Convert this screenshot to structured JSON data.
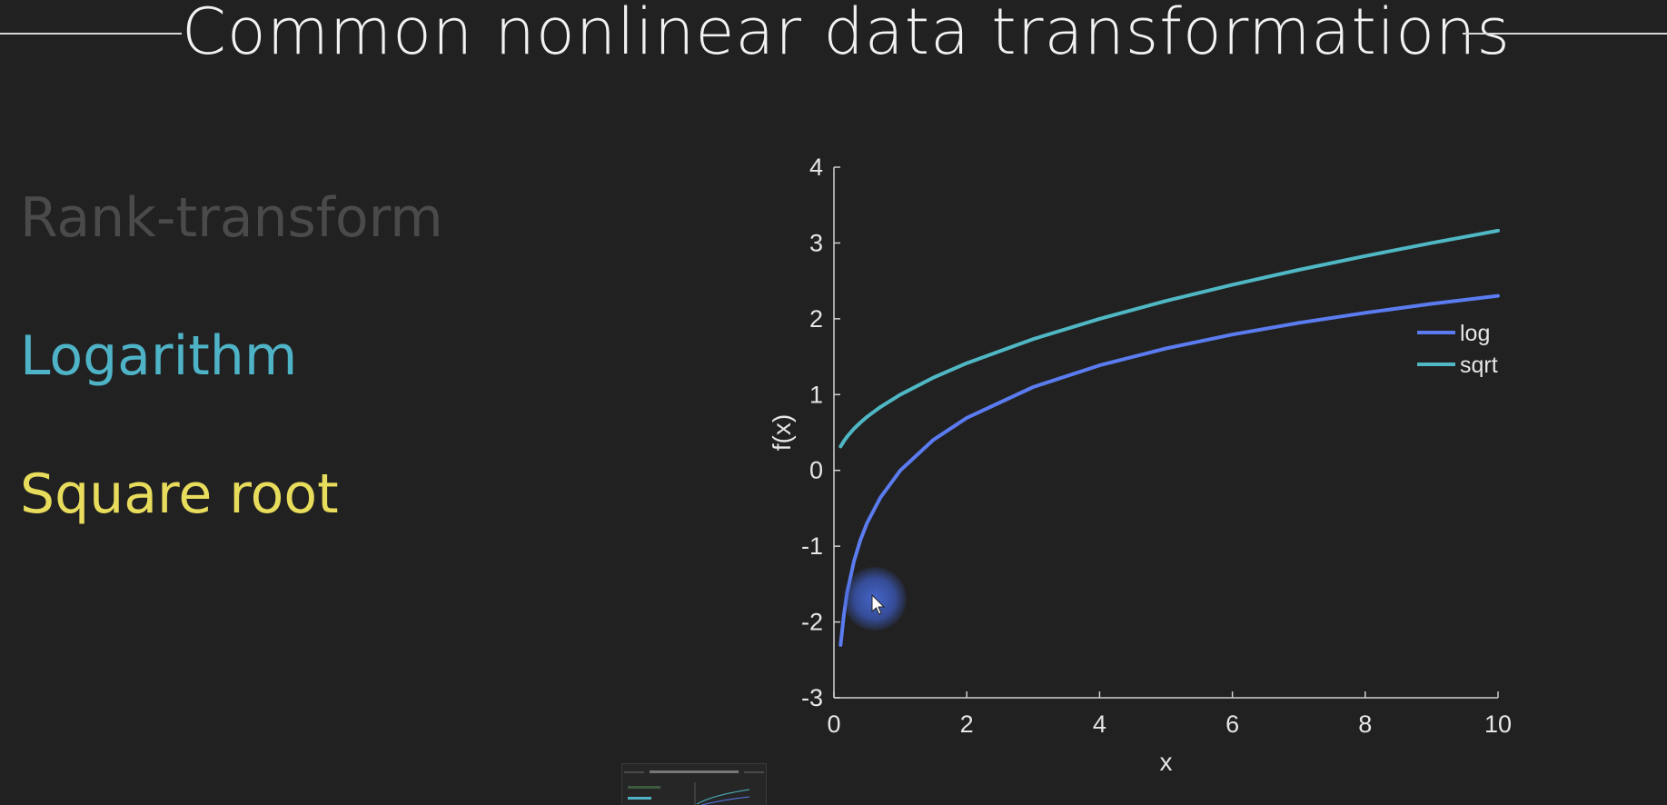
{
  "slide": {
    "title": "Common nonlinear data transformations",
    "topics": [
      {
        "label": "Rank-transform",
        "color": "#4a4a4a"
      },
      {
        "label": "Logarithm",
        "color": "#4fb3c8"
      },
      {
        "label": "Square root",
        "color": "#e8dc5c"
      }
    ]
  },
  "chart_data": {
    "type": "line",
    "title": "",
    "xlabel": "x",
    "ylabel": "f(x)",
    "xlim": [
      0,
      10
    ],
    "ylim": [
      -3,
      4
    ],
    "xticks": [
      0,
      2,
      4,
      6,
      8,
      10
    ],
    "yticks": [
      -3,
      -2,
      -1,
      0,
      1,
      2,
      3,
      4
    ],
    "grid": false,
    "legend_position": "right",
    "series": [
      {
        "name": "log",
        "color": "#5b7cf0",
        "x": [
          0.1,
          0.15,
          0.2,
          0.3,
          0.4,
          0.5,
          0.7,
          1,
          1.5,
          2,
          3,
          4,
          5,
          6,
          7,
          8,
          9,
          10
        ],
        "y": [
          -2.303,
          -1.897,
          -1.609,
          -1.204,
          -0.916,
          -0.693,
          -0.357,
          0,
          0.405,
          0.693,
          1.099,
          1.386,
          1.609,
          1.792,
          1.946,
          2.079,
          2.197,
          2.303
        ]
      },
      {
        "name": "sqrt",
        "color": "#4fb8c4",
        "x": [
          0.1,
          0.15,
          0.2,
          0.3,
          0.4,
          0.5,
          0.7,
          1,
          1.5,
          2,
          3,
          4,
          5,
          6,
          7,
          8,
          9,
          10
        ],
        "y": [
          0.316,
          0.387,
          0.447,
          0.548,
          0.632,
          0.707,
          0.837,
          1,
          1.225,
          1.414,
          1.732,
          2,
          2.236,
          2.449,
          2.646,
          2.828,
          3,
          3.162
        ]
      }
    ]
  }
}
